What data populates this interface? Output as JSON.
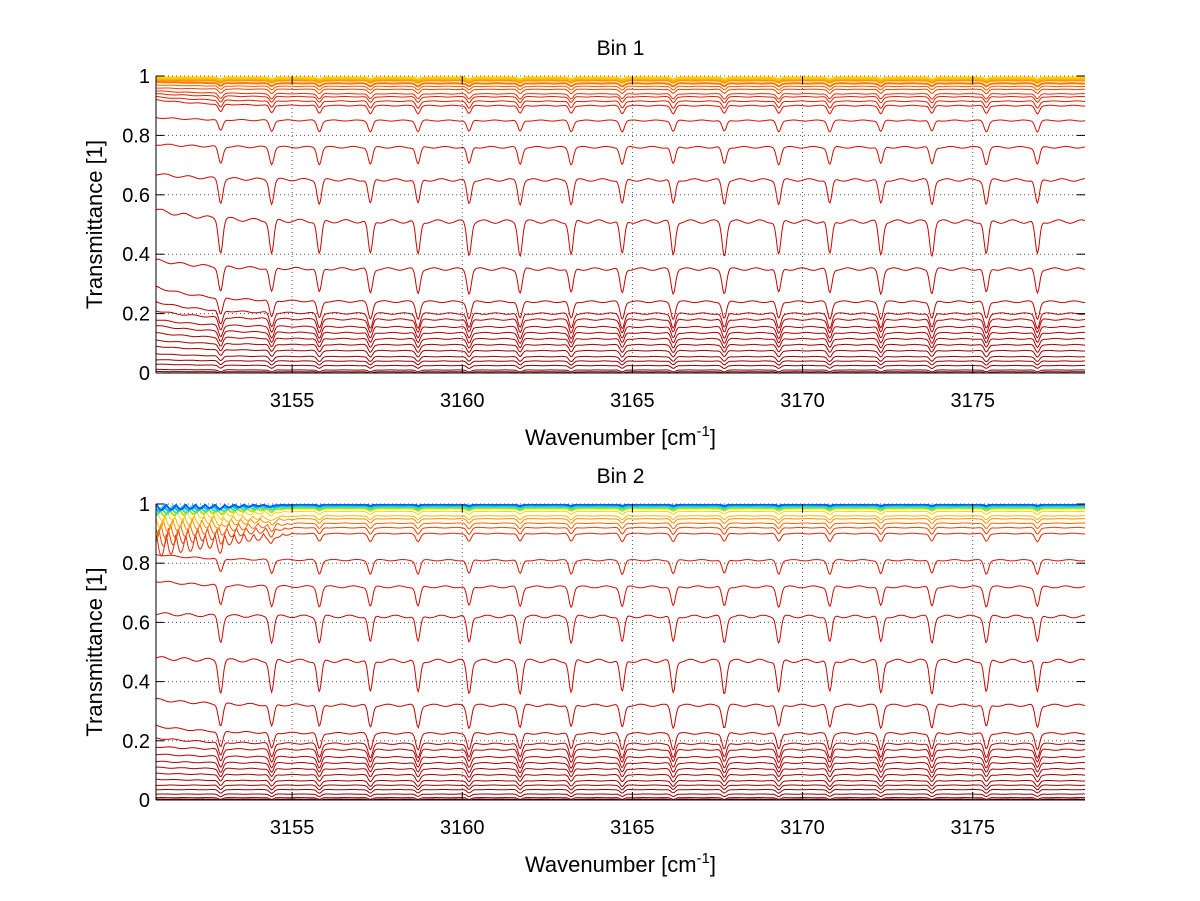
{
  "chart_data": [
    {
      "type": "line",
      "title": "Bin 1",
      "xlabel": "Wavenumber [cm",
      "xlabel_sup": "-1",
      "xlabel_suffix": "]",
      "ylabel": "Transmittance [1]",
      "xlim": [
        3151.0,
        3178.3
      ],
      "ylim": [
        0,
        1
      ],
      "xticks": [
        3155,
        3160,
        3165,
        3170,
        3175
      ],
      "yticks": [
        0,
        0.2,
        0.4,
        0.6,
        0.8,
        1
      ],
      "xtick_labels": [
        "3155",
        "3160",
        "3165",
        "3170",
        "3175"
      ],
      "ytick_labels": [
        "0",
        "0.2",
        "0.4",
        "0.6",
        "0.8",
        "1"
      ],
      "grid": "dotted",
      "legend": "none",
      "absorption_lines_x": [
        3152.9,
        3154.4,
        3155.8,
        3157.3,
        3158.7,
        3160.2,
        3161.7,
        3163.2,
        3164.7,
        3166.2,
        3167.7,
        3169.3,
        3170.8,
        3172.3,
        3173.8,
        3175.4,
        3176.9
      ],
      "series_baselines": [
        0.995,
        0.99,
        0.985,
        0.975,
        0.965,
        0.955,
        0.94,
        0.93,
        0.915,
        0.9,
        0.85,
        0.76,
        0.65,
        0.51,
        0.35,
        0.24,
        0.2,
        0.18,
        0.155,
        0.135,
        0.115,
        0.095,
        0.075,
        0.055,
        0.04,
        0.025,
        0.01,
        0.004
      ],
      "series_start_values": [
        0.995,
        0.99,
        0.985,
        0.98,
        0.97,
        0.96,
        0.95,
        0.94,
        0.93,
        0.92,
        0.86,
        0.77,
        0.67,
        0.55,
        0.38,
        0.29,
        0.24,
        0.21,
        0.18,
        0.16,
        0.135,
        0.11,
        0.09,
        0.065,
        0.045,
        0.03,
        0.012,
        0.005
      ],
      "series_colors": [
        "#ffd200",
        "#ffb400",
        "#ff9600",
        "#ff7800",
        "#ff5a00",
        "#f04000",
        "#e83000",
        "#e02400",
        "#dd1c00",
        "#d81400",
        "#d41000",
        "#d00c00",
        "#cc0800",
        "#c80600",
        "#c40400",
        "#c00200",
        "#bb0000",
        "#b60000",
        "#b10000",
        "#ac0000",
        "#a70000",
        "#a20000",
        "#9d0000",
        "#980000",
        "#930000",
        "#8e0000",
        "#890000",
        "#840000"
      ]
    },
    {
      "type": "line",
      "title": "Bin 2",
      "xlabel": "Wavenumber [cm",
      "xlabel_sup": "-1",
      "xlabel_suffix": "]",
      "ylabel": "Transmittance [1]",
      "xlim": [
        3151.0,
        3178.3
      ],
      "ylim": [
        0,
        1
      ],
      "xticks": [
        3155,
        3160,
        3165,
        3170,
        3175
      ],
      "yticks": [
        0,
        0.2,
        0.4,
        0.6,
        0.8,
        1
      ],
      "xtick_labels": [
        "3155",
        "3160",
        "3165",
        "3170",
        "3175"
      ],
      "ytick_labels": [
        "0",
        "0.2",
        "0.4",
        "0.6",
        "0.8",
        "1"
      ],
      "grid": "dotted",
      "legend": "none",
      "absorption_lines_x": [
        3152.9,
        3154.4,
        3155.8,
        3157.3,
        3158.7,
        3160.2,
        3161.7,
        3163.2,
        3164.7,
        3166.2,
        3167.7,
        3169.3,
        3170.8,
        3172.3,
        3173.8,
        3175.4,
        3176.9
      ],
      "series_baselines": [
        0.998,
        0.995,
        0.99,
        0.985,
        0.975,
        0.96,
        0.95,
        0.935,
        0.92,
        0.9,
        0.81,
        0.72,
        0.62,
        0.47,
        0.32,
        0.225,
        0.19,
        0.17,
        0.145,
        0.125,
        0.105,
        0.085,
        0.065,
        0.05,
        0.035,
        0.02,
        0.008,
        0.003
      ],
      "series_start_values": [
        0.998,
        0.995,
        0.99,
        0.985,
        0.975,
        0.96,
        0.95,
        0.935,
        0.92,
        0.9,
        0.83,
        0.74,
        0.63,
        0.48,
        0.34,
        0.25,
        0.21,
        0.18,
        0.155,
        0.13,
        0.11,
        0.09,
        0.07,
        0.05,
        0.035,
        0.02,
        0.008,
        0.003
      ],
      "series_colors": [
        "#0060ff",
        "#00c0ff",
        "#40e0a0",
        "#c0e000",
        "#ffd200",
        "#ffb400",
        "#ff8c00",
        "#ff6400",
        "#f04000",
        "#e02800",
        "#d81400",
        "#d00c00",
        "#cc0800",
        "#c80600",
        "#c40400",
        "#c00200",
        "#bb0000",
        "#b60000",
        "#b10000",
        "#ac0000",
        "#a70000",
        "#a20000",
        "#9d0000",
        "#980000",
        "#930000",
        "#8e0000",
        "#890000",
        "#840000"
      ]
    }
  ]
}
